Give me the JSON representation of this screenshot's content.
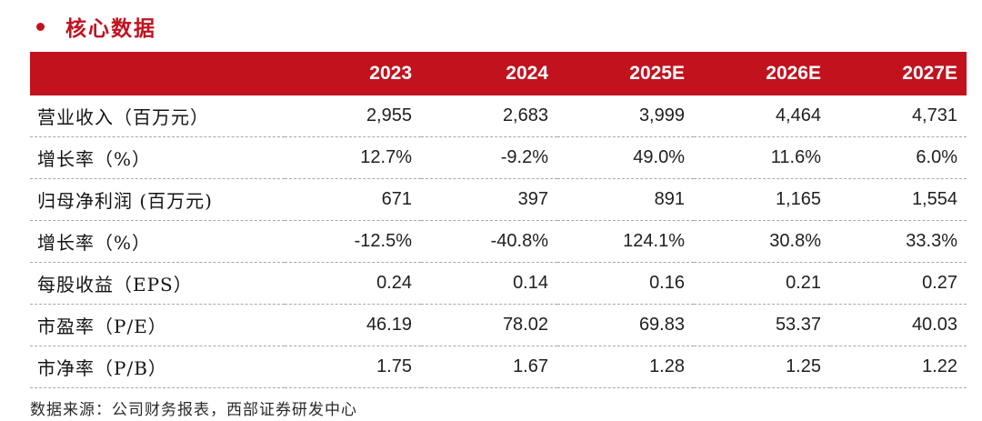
{
  "page": {
    "section_title": "核心数据",
    "source_note": "数据来源：公司财务报表，西部证券研发中心"
  },
  "colors": {
    "accent_red": "#c2121e",
    "header_text": "#ffffff",
    "body_text": "#1f1f1f",
    "divider": "#a9a9a9"
  },
  "chart_data": {
    "type": "table",
    "title": "核心数据",
    "columns": [
      "",
      "2023",
      "2024",
      "2025E",
      "2026E",
      "2027E"
    ],
    "rows": [
      {
        "label": "营业收入（百万元）",
        "values": [
          "2,955",
          "2,683",
          "3,999",
          "4,464",
          "4,731"
        ]
      },
      {
        "label": "增长率（%）",
        "values": [
          "12.7%",
          "-9.2%",
          "49.0%",
          "11.6%",
          "6.0%"
        ]
      },
      {
        "label": "归母净利润 (百万元)",
        "values": [
          "671",
          "397",
          "891",
          "1,165",
          "1,554"
        ]
      },
      {
        "label": "增长率（%）",
        "values": [
          "-12.5%",
          "-40.8%",
          "124.1%",
          "30.8%",
          "33.3%"
        ]
      },
      {
        "label": "每股收益（EPS）",
        "values": [
          "0.24",
          "0.14",
          "0.16",
          "0.21",
          "0.27"
        ]
      },
      {
        "label": "市盈率（P/E）",
        "values": [
          "46.19",
          "78.02",
          "69.83",
          "53.37",
          "40.03"
        ]
      },
      {
        "label": "市净率（P/B）",
        "values": [
          "1.75",
          "1.67",
          "1.28",
          "1.25",
          "1.22"
        ]
      }
    ]
  }
}
